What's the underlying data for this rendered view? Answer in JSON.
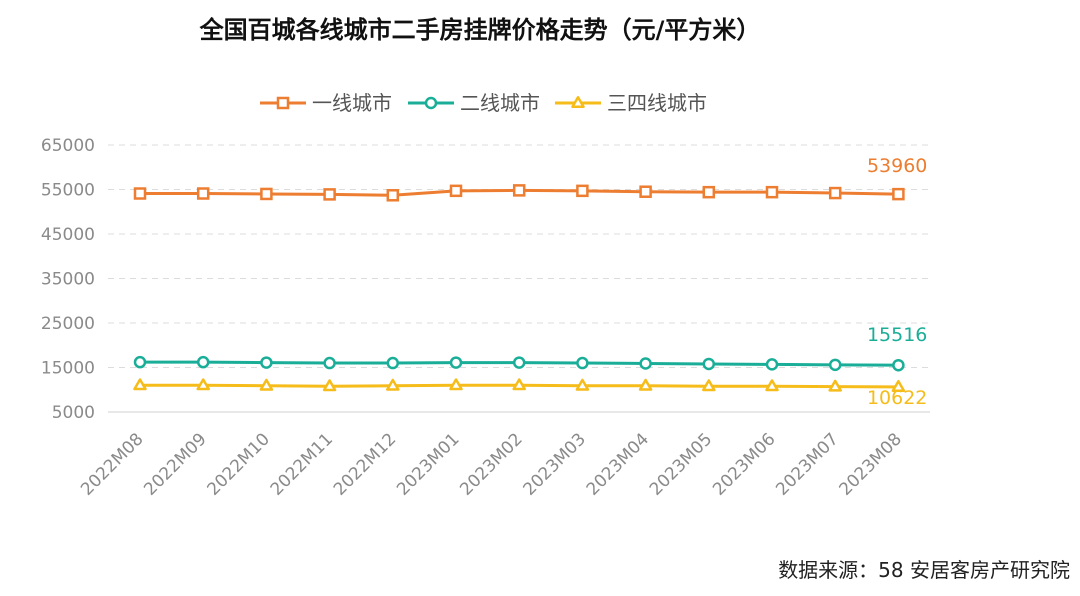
{
  "chart_data": {
    "type": "line",
    "title": "全国百城各线城市二手房挂牌价格走势（元/平方米）",
    "categories": [
      "2022M08",
      "2022M09",
      "2022M10",
      "2022M11",
      "2022M12",
      "2023M01",
      "2023M02",
      "2023M03",
      "2023M04",
      "2023M05",
      "2023M06",
      "2023M07",
      "2023M08"
    ],
    "yticks": [
      "5000",
      "15000",
      "25000",
      "35000",
      "45000",
      "55000",
      "65000"
    ],
    "ylim": [
      5000,
      65000
    ],
    "series": [
      {
        "name": "一线城市",
        "color": "#ED7D31",
        "marker": "square",
        "values": [
          54100,
          54100,
          54000,
          53900,
          53700,
          54700,
          54800,
          54700,
          54500,
          54400,
          54400,
          54200,
          53960
        ],
        "end_label": "53960"
      },
      {
        "name": "二线城市",
        "color": "#1AAE98",
        "marker": "circle",
        "values": [
          16200,
          16200,
          16100,
          16000,
          16000,
          16100,
          16100,
          16000,
          15900,
          15800,
          15700,
          15600,
          15516
        ],
        "end_label": "15516"
      },
      {
        "name": "三四线城市",
        "color": "#F5BC1A",
        "marker": "triangle",
        "values": [
          11000,
          11000,
          10900,
          10800,
          10900,
          11000,
          11000,
          10900,
          10900,
          10800,
          10800,
          10700,
          10622
        ],
        "end_label": "10622"
      }
    ]
  },
  "source": "数据来源：58 安居客房产研究院"
}
